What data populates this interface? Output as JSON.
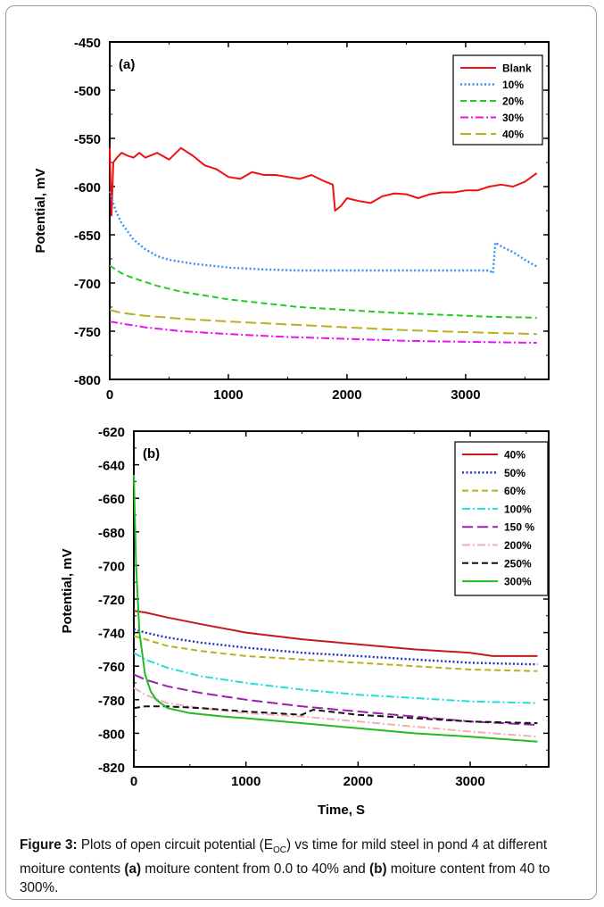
{
  "chart_data": [
    {
      "panel": "(a)",
      "type": "line",
      "xlabel": "",
      "ylabel": "Potential, mV",
      "xlim": [
        0,
        3700
      ],
      "ylim": [
        -800,
        -450
      ],
      "xticks": [
        "0",
        "1000",
        "2000",
        "3000"
      ],
      "yticks": [
        "-450",
        "-500",
        "-550",
        "-600",
        "-650",
        "-700",
        "-750",
        "-800"
      ],
      "legend_position": "top-right",
      "series": [
        {
          "name": "Blank",
          "color": "#ee1111",
          "style": "solid",
          "x": [
            0,
            15,
            30,
            60,
            100,
            150,
            200,
            250,
            300,
            400,
            500,
            600,
            700,
            800,
            900,
            1000,
            1100,
            1200,
            1300,
            1400,
            1500,
            1600,
            1700,
            1800,
            1880,
            1900,
            1950,
            2000,
            2100,
            2200,
            2300,
            2400,
            2500,
            2600,
            2700,
            2800,
            2900,
            3000,
            3100,
            3200,
            3300,
            3400,
            3500,
            3600
          ],
          "y": [
            -560,
            -630,
            -575,
            -570,
            -565,
            -568,
            -570,
            -565,
            -570,
            -565,
            -572,
            -560,
            -568,
            -578,
            -582,
            -590,
            -592,
            -585,
            -588,
            -588,
            -590,
            -592,
            -588,
            -594,
            -598,
            -625,
            -620,
            -612,
            -615,
            -617,
            -610,
            -607,
            -608,
            -612,
            -608,
            -606,
            -606,
            -604,
            -604,
            -600,
            -598,
            -600,
            -595,
            -586
          ]
        },
        {
          "name": "10%",
          "color": "#3d8ff0",
          "style": "dotted",
          "x": [
            0,
            50,
            100,
            200,
            300,
            400,
            500,
            700,
            1000,
            1300,
            1600,
            2000,
            2500,
            3000,
            3200,
            3230,
            3250,
            3300,
            3400,
            3500,
            3600
          ],
          "y": [
            -605,
            -625,
            -638,
            -655,
            -665,
            -672,
            -676,
            -680,
            -684,
            -686,
            -687,
            -687,
            -687,
            -687,
            -687,
            -690,
            -658,
            -662,
            -668,
            -676,
            -683
          ]
        },
        {
          "name": "20%",
          "color": "#22cc22",
          "style": "dashed",
          "x": [
            0,
            100,
            200,
            400,
            600,
            800,
            1000,
            1300,
            1600,
            2000,
            2400,
            2800,
            3200,
            3600
          ],
          "y": [
            -682,
            -690,
            -695,
            -703,
            -709,
            -713,
            -717,
            -721,
            -725,
            -728,
            -731,
            -733,
            -735,
            -736
          ]
        },
        {
          "name": "30%",
          "color": "#ee11ee",
          "style": "dashdot",
          "x": [
            0,
            100,
            300,
            600,
            1000,
            1500,
            2000,
            2500,
            3000,
            3600
          ],
          "y": [
            -740,
            -742,
            -746,
            -750,
            -753,
            -756,
            -758,
            -760,
            -761,
            -762
          ]
        },
        {
          "name": "40%",
          "color": "#b8b020",
          "style": "longdash",
          "x": [
            0,
            100,
            300,
            600,
            1000,
            1500,
            2000,
            2500,
            3000,
            3600
          ],
          "y": [
            -728,
            -731,
            -734,
            -737,
            -740,
            -743,
            -746,
            -749,
            -751,
            -753
          ]
        }
      ]
    },
    {
      "panel": "(b)",
      "type": "line",
      "xlabel": "Time, S",
      "ylabel": "Potential, mV",
      "xlim": [
        0,
        3700
      ],
      "ylim": [
        -820,
        -620
      ],
      "xticks": [
        "0",
        "1000",
        "2000",
        "3000"
      ],
      "yticks": [
        "-620",
        "-640",
        "-660",
        "-680",
        "-700",
        "-720",
        "-740",
        "-760",
        "-780",
        "-800",
        "-820"
      ],
      "legend_position": "top-right",
      "series": [
        {
          "name": "40%",
          "color": "#c41a1a",
          "style": "solid",
          "x": [
            0,
            100,
            300,
            600,
            1000,
            1500,
            2000,
            2500,
            3000,
            3200,
            3600
          ],
          "y": [
            -727,
            -728,
            -731,
            -735,
            -740,
            -744,
            -747,
            -750,
            -752,
            -754,
            -754
          ]
        },
        {
          "name": "50%",
          "color": "#2233bb",
          "style": "dotted",
          "x": [
            0,
            100,
            300,
            600,
            1000,
            1500,
            2000,
            2500,
            3000,
            3600
          ],
          "y": [
            -738,
            -740,
            -743,
            -746,
            -749,
            -752,
            -754,
            -756,
            -758,
            -759
          ]
        },
        {
          "name": "60%",
          "color": "#b8b020",
          "style": "dashed",
          "x": [
            0,
            100,
            300,
            600,
            1000,
            1500,
            2000,
            2500,
            3000,
            3600
          ],
          "y": [
            -742,
            -744,
            -748,
            -751,
            -754,
            -756,
            -758,
            -760,
            -762,
            -763
          ]
        },
        {
          "name": "100%",
          "color": "#22dddd",
          "style": "dashdot",
          "x": [
            0,
            100,
            300,
            600,
            1000,
            1500,
            2000,
            2500,
            3000,
            3600
          ],
          "y": [
            -752,
            -756,
            -761,
            -766,
            -770,
            -774,
            -777,
            -779,
            -781,
            -782
          ]
        },
        {
          "name": "150 %",
          "color": "#9922aa",
          "style": "longdash",
          "x": [
            0,
            100,
            300,
            600,
            1000,
            1500,
            2000,
            2500,
            3000,
            3600
          ],
          "y": [
            -765,
            -768,
            -772,
            -776,
            -780,
            -784,
            -787,
            -790,
            -793,
            -795
          ]
        },
        {
          "name": "200%",
          "color": "#f0b0b0",
          "style": "dashdot",
          "x": [
            0,
            100,
            300,
            600,
            1000,
            1500,
            2000,
            2500,
            3000,
            3600
          ],
          "y": [
            -773,
            -777,
            -782,
            -785,
            -788,
            -790,
            -793,
            -796,
            -799,
            -802
          ]
        },
        {
          "name": "250%",
          "color": "#111111",
          "style": "dashed",
          "x": [
            0,
            100,
            300,
            600,
            1000,
            1500,
            1560,
            1600,
            2000,
            2500,
            3000,
            3600
          ],
          "y": [
            -785,
            -784,
            -784,
            -785,
            -787,
            -789,
            -787,
            -786,
            -789,
            -791,
            -793,
            -794
          ]
        },
        {
          "name": "300%",
          "color": "#22bb22",
          "style": "solid",
          "x": [
            0,
            20,
            50,
            100,
            150,
            200,
            300,
            500,
            800,
            1000,
            1500,
            2000,
            2500,
            3000,
            3600
          ],
          "y": [
            -646,
            -700,
            -740,
            -765,
            -775,
            -780,
            -785,
            -788,
            -790,
            -791,
            -794,
            -797,
            -800,
            -802,
            -805
          ]
        }
      ]
    }
  ],
  "caption": {
    "label": "Figure 3:",
    "text_1": " Plots of open circuit potential (E",
    "sub": "OC",
    "text_2": ") vs time for mild steel in pond 4 at different moiture contents ",
    "bold_a": "(a)",
    "text_3": " moiture content from 0.0 to 40% and ",
    "bold_b": "(b)",
    "text_4": " moiture content from 40 to 300%."
  }
}
